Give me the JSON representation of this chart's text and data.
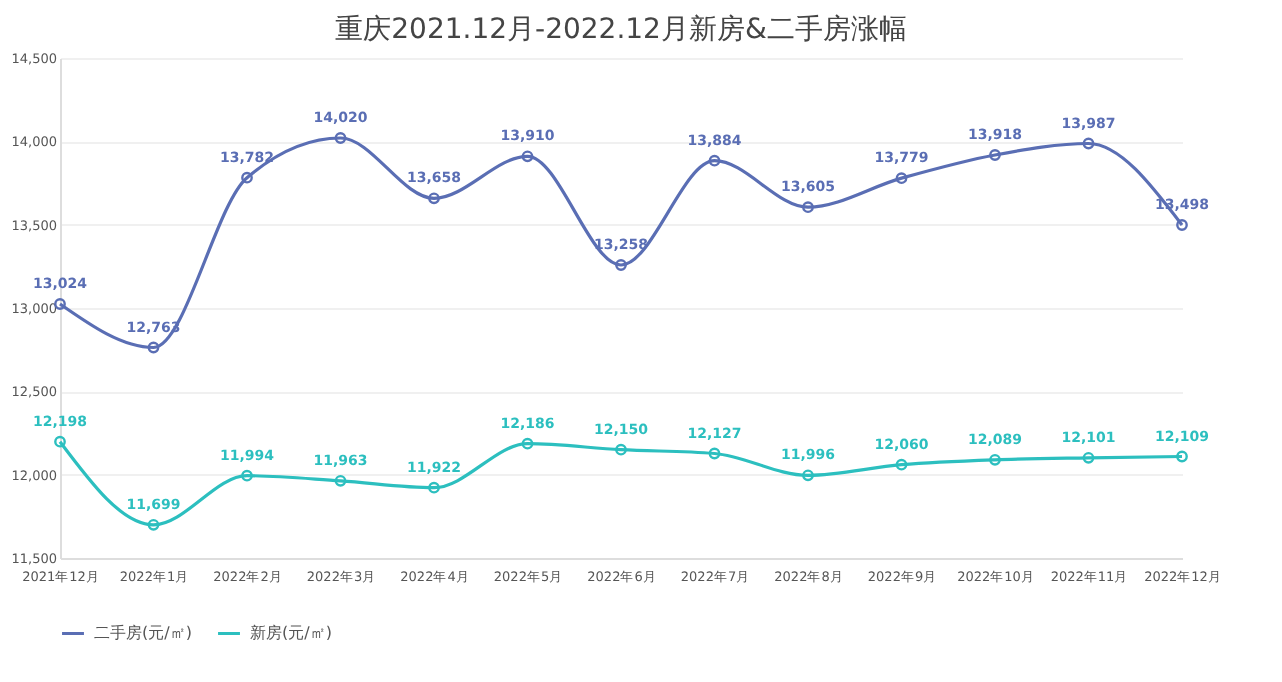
{
  "chart_data": {
    "type": "line",
    "title": "重庆2021.12月-2022.12月新房&二手房涨幅",
    "categories": [
      "2021年12月",
      "2022年1月",
      "2022年2月",
      "2022年3月",
      "2022年4月",
      "2022年5月",
      "2022年6月",
      "2022年7月",
      "2022年8月",
      "2022年9月",
      "2022年10月",
      "2022年11月",
      "2022年12月"
    ],
    "series": [
      {
        "name": "二手房(元/㎡)",
        "color": "#5a6eb4",
        "values": [
          13024,
          12763,
          13782,
          14020,
          13658,
          13910,
          13258,
          13884,
          13605,
          13779,
          13918,
          13987,
          13498
        ],
        "value_labels": [
          "13,024",
          "12,763",
          "13,782",
          "14,020",
          "13,658",
          "13,910",
          "13,258",
          "13,884",
          "13,605",
          "13,779",
          "13,918",
          "13,987",
          "13,498"
        ]
      },
      {
        "name": "新房(元/㎡)",
        "color": "#2cbfbf",
        "values": [
          12198,
          11699,
          11994,
          11963,
          11922,
          12186,
          12150,
          12127,
          11996,
          12060,
          12089,
          12101,
          12109
        ],
        "value_labels": [
          "12,198",
          "11,699",
          "11,994",
          "11,963",
          "11,922",
          "12,186",
          "12,150",
          "12,127",
          "11,996",
          "12,060",
          "12,089",
          "12,101",
          "12,109"
        ]
      }
    ],
    "ylim": [
      11500,
      14500
    ],
    "yticks": [
      {
        "value": 11500,
        "label": "11,500"
      },
      {
        "value": 12000,
        "label": "12,000"
      },
      {
        "value": 12500,
        "label": "12,500"
      },
      {
        "value": 13000,
        "label": "13,000"
      },
      {
        "value": 13500,
        "label": "13,500"
      },
      {
        "value": 14000,
        "label": "14,000"
      },
      {
        "value": 14500,
        "label": "14,500"
      }
    ],
    "grid": "y",
    "legend": "bottom",
    "marker": "circle",
    "line_style": "solid"
  }
}
